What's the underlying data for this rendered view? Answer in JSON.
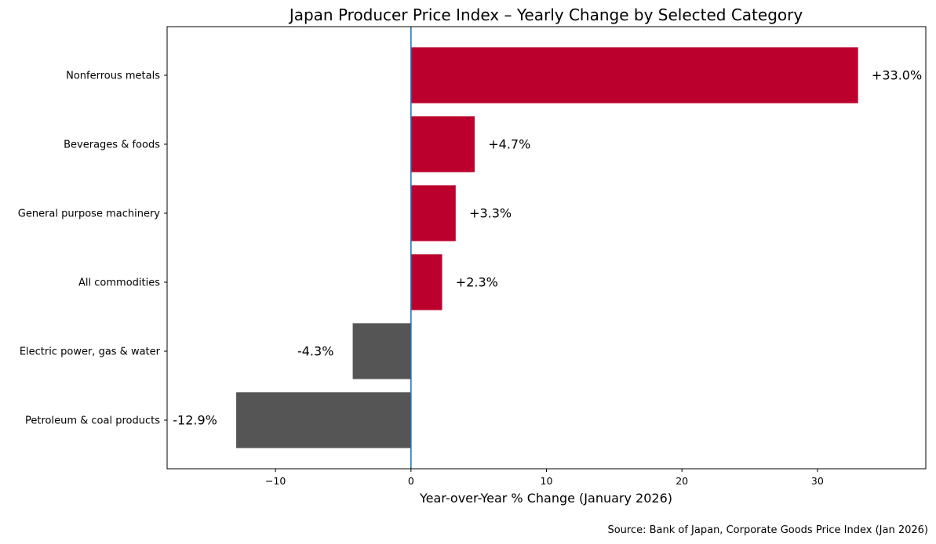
{
  "chart_data": {
    "type": "bar",
    "orientation": "horizontal",
    "title": "Japan Producer Price Index – Yearly Change by Selected Category",
    "xlabel": "Year-over-Year % Change (January 2026)",
    "ylabel": "",
    "xlim": [
      -18,
      38
    ],
    "xticks": [
      -10,
      0,
      10,
      20,
      30
    ],
    "xtick_labels": [
      "−10",
      "0",
      "10",
      "20",
      "30"
    ],
    "categories": [
      "Nonferrous metals",
      "Beverages & foods",
      "General purpose machinery",
      "All commodities",
      "Electric power, gas & water",
      "Petroleum & coal products"
    ],
    "values": [
      33.0,
      4.7,
      3.3,
      2.3,
      -4.3,
      -12.9
    ],
    "data_labels": [
      "+33.0%",
      "+4.7%",
      "+3.3%",
      "+2.3%",
      "-4.3%",
      "-12.9%"
    ],
    "colors": {
      "positive": "#bc002d",
      "negative": "#555555",
      "zero_line": "#1f77b4"
    },
    "grid": false,
    "source": "Source: Bank of Japan, Corporate Goods Price Index (Jan 2026)"
  }
}
